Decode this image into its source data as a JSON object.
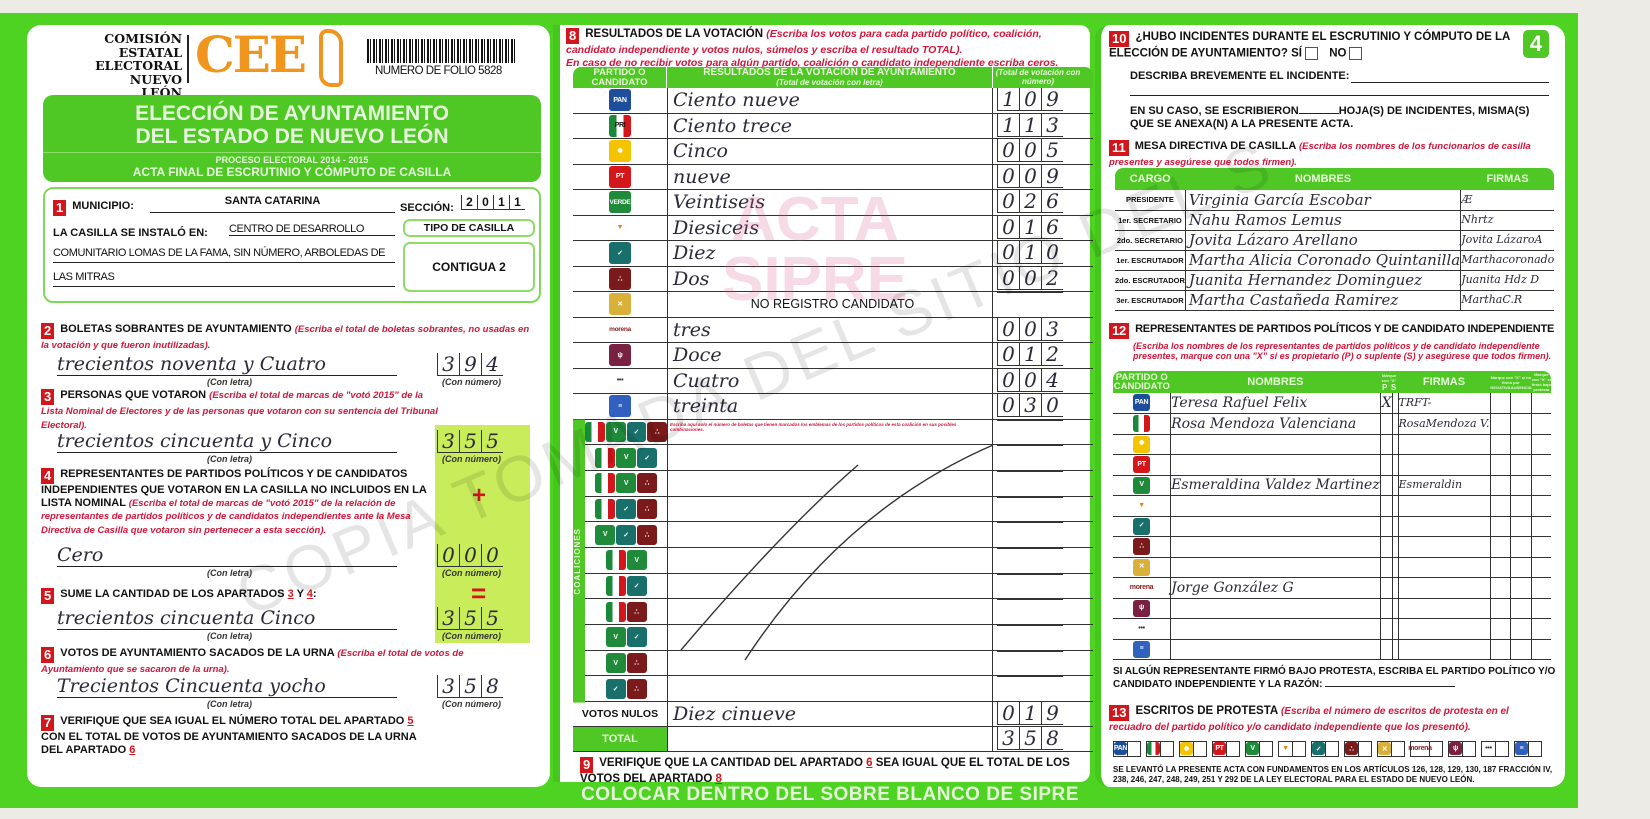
{
  "header": {
    "commission_lines": [
      "COMISIÓN",
      "ESTATAL",
      "ELECTORAL",
      "NUEVO LEÓN"
    ],
    "logo": "CEE",
    "folio": "NUMERO DE FOLIO 5828",
    "title_lines": [
      "ELECCIÓN DE AYUNTAMIENTO",
      "DEL ESTADO DE NUEVO LEÓN"
    ],
    "process": "PROCESO ELECTORAL 2014 - 2015",
    "acta": "ACTA FINAL DE ESCRUTINIO Y CÓMPUTO DE CASILLA"
  },
  "s1": {
    "n": "1",
    "municipio_label": "MUNICIPIO:",
    "municipio": "SANTA CATARINA",
    "seccion_label": "SECCIÓN:",
    "seccion": [
      "2",
      "0",
      "1",
      "1"
    ],
    "casilla_label": "LA CASILLA SE INSTALÓ EN:",
    "casilla_lines": [
      "CENTRO DE DESARROLLO",
      "COMUNITARIO LOMAS DE LA FAMA, SIN NÚMERO, ARBOLEDAS DE",
      "LAS MITRAS"
    ],
    "tipo_label": "TIPO DE CASILLA",
    "tipo": "CONTIGUA 2"
  },
  "labels": {
    "con_letra": "(Con letra)",
    "con_numero": "(Con número)",
    "plus": "+",
    "equals": "="
  },
  "s2": {
    "n": "2",
    "title": "BOLETAS SOBRANTES DE AYUNTAMIENTO",
    "note": "(Escriba el total de boletas sobrantes, no usadas en la votación y que fueron inutilizadas).",
    "letra": "trecientos noventa y Cuatro",
    "digits": [
      "3",
      "9",
      "4"
    ]
  },
  "s3": {
    "n": "3",
    "title": "PERSONAS QUE VOTARON",
    "note": "(Escriba el total de marcas de \"votó 2015\" de la Lista Nominal de Electores y de las personas que votaron con su sentencia del Tribunal Electoral).",
    "letra": "trecientos cincuenta y Cinco",
    "digits": [
      "3",
      "5",
      "5"
    ]
  },
  "s4": {
    "n": "4",
    "title": "REPRESENTANTES DE PARTIDOS POLÍTICOS Y DE CANDIDATOS INDEPENDIENTES QUE VOTARON EN LA CASILLA NO INCLUIDOS EN LA LISTA NOMINAL",
    "note": "(Escriba el total de marcas de \"votó 2015\" de la relación de representantes de partidos políticos y de candidatos independientes ante la Mesa Directiva de Casilla que votaron sin pertenecer a esta sección).",
    "letra": "Cero",
    "digits": [
      "0",
      "0",
      "0"
    ]
  },
  "s5": {
    "n": "5",
    "title": "SUME LA CANTIDAD DE LOS APARTADOS",
    "a": "3",
    "y": "Y",
    "b": "4",
    "colon": ":",
    "letra": "trecientos cincuenta Cinco",
    "digits": [
      "3",
      "5",
      "5"
    ]
  },
  "s6": {
    "n": "6",
    "title": "VOTOS DE AYUNTAMIENTO SACADOS DE LA URNA",
    "note": "(Escriba el total de votos de Ayuntamiento que se sacaron de la urna).",
    "letra": "Trecientos Cincuenta yocho",
    "digits": [
      "3",
      "5",
      "8"
    ]
  },
  "s7": {
    "n": "7",
    "t1": "VERIFIQUE QUE SEA IGUAL EL NÚMERO TOTAL DEL APARTADO",
    "a": "5",
    "t2": "CON EL TOTAL DE VOTOS DE AYUNTAMIENTO SACADOS DE LA URNA DEL APARTADO",
    "b": "6"
  },
  "s8": {
    "n": "8",
    "title": "RESULTADOS DE LA VOTACIÓN",
    "note": "(Escriba los votos para cada partido político, coalición, candidato independiente y votos nulos, súmelos y escriba el resultado TOTAL).",
    "note2": "En caso de no recibir votos para algún partido, coalición o candidato independiente escriba ceros.",
    "col1": "PARTIDO O CANDIDATO",
    "col2": "RESULTADOS DE LA VOTACIÓN DE AYUNTAMIENTO",
    "col2sub": "(Total de votación con letra)",
    "col3": "(Total de votación con número)",
    "rows": [
      {
        "icon": "pan",
        "label": "PAN",
        "letra": "Ciento nueve",
        "digits": [
          "1",
          "0",
          "9"
        ]
      },
      {
        "icon": "pri",
        "label": "PRI",
        "letra": "Ciento trece",
        "digits": [
          "1",
          "1",
          "3"
        ]
      },
      {
        "icon": "prd",
        "label": "",
        "letra": "Cinco",
        "digits": [
          "0",
          "0",
          "5"
        ]
      },
      {
        "icon": "pt",
        "label": "PT",
        "letra": "nueve",
        "digits": [
          "0",
          "0",
          "9"
        ]
      },
      {
        "icon": "verde",
        "label": "VERDE",
        "letra": "Veintiseis",
        "digits": [
          "0",
          "2",
          "6"
        ]
      },
      {
        "icon": "mc",
        "label": "",
        "letra": "Diesiceis",
        "digits": [
          "0",
          "1",
          "6"
        ]
      },
      {
        "icon": "na",
        "label": "",
        "letra": "Diez",
        "digits": [
          "0",
          "1",
          "0"
        ]
      },
      {
        "icon": "pd",
        "label": "",
        "letra": "Dos",
        "digits": [
          "0",
          "0",
          "2"
        ]
      },
      {
        "icon": "cc",
        "label": "",
        "letra": "NO REGISTRO CANDIDATO",
        "digits": [
          "",
          "",
          ""
        ],
        "printed": true
      },
      {
        "icon": "morena",
        "label": "morena",
        "letra": "tres",
        "digits": [
          "0",
          "0",
          "3"
        ]
      },
      {
        "icon": "ph",
        "label": "",
        "letra": "Doce",
        "digits": [
          "0",
          "1",
          "2"
        ]
      },
      {
        "icon": "es",
        "label": "",
        "letra": "Cuatro",
        "digits": [
          "0",
          "0",
          "4"
        ]
      },
      {
        "icon": "cci",
        "label": "",
        "letra": "treinta",
        "digits": [
          "0",
          "3",
          "0"
        ]
      }
    ],
    "coalition_label": "COALICIONES",
    "coalition_note": "Escriba aquí solo el número de boletas que tienen marcados los emblemas de los partidos políticos de esta coalición en sus posibles combinaciones.",
    "coalitions": [
      [
        "pri",
        "verde",
        "na",
        "pd"
      ],
      [
        "pri",
        "verde",
        "na"
      ],
      [
        "pri",
        "verde",
        "pd"
      ],
      [
        "pri",
        "na",
        "pd"
      ],
      [
        "verde",
        "na",
        "pd"
      ],
      [
        "pri",
        "verde"
      ],
      [
        "pri",
        "na"
      ],
      [
        "pri",
        "pd"
      ],
      [
        "verde",
        "na"
      ],
      [
        "verde",
        "pd"
      ],
      [
        "na",
        "pd"
      ]
    ],
    "nulos_label": "VOTOS NULOS",
    "nulos_letra": "Diez cinueve",
    "nulos_digits": [
      "0",
      "1",
      "9"
    ],
    "total_label": "TOTAL",
    "total_digits": [
      "3",
      "5",
      "8"
    ]
  },
  "s9": {
    "n": "9",
    "t1": "VERIFIQUE QUE LA CANTIDAD DEL APARTADO",
    "a": "6",
    "t2": "SEA IGUAL QUE EL TOTAL DE LOS VOTOS DEL APARTADO",
    "b": "8"
  },
  "footer": "COLOCAR DENTRO DEL SOBRE BLANCO DE SIPRE",
  "s10": {
    "n": "10",
    "q": "¿HUBO INCIDENTES DURANTE EL ESCRUTINIO Y CÓMPUTO DE LA ELECCIÓN DE AYUNTAMIENTO?",
    "si": "SÍ",
    "no": "NO",
    "describe": "DESCRIBA BREVEMENTE EL INCIDENTE:",
    "hojas1": "EN SU CASO, SE ESCRIBIERON",
    "hojas2": "HOJA(S) DE INCIDENTES, MISMA(S) QUE SE ANEXA(N) A LA PRESENTE ACTA.",
    "page": "4"
  },
  "s11": {
    "n": "11",
    "title": "MESA DIRECTIVA DE CASILLA",
    "note": "(Escriba los nombres de los funcionarios de casilla presentes y asegúrese que todos firmen).",
    "cols": [
      "CARGO",
      "NOMBRES",
      "FIRMAS"
    ],
    "rows": [
      {
        "cargo": "PRESIDENTE",
        "nombre": "Virginia García Escobar",
        "firma": "Æ"
      },
      {
        "cargo": "1er. SECRETARIO",
        "nombre": "Nahu Ramos Lemus",
        "firma": "Nhrtz"
      },
      {
        "cargo": "2do. SECRETARIO",
        "nombre": "Jovita Lázaro Arellano",
        "firma": "Jovita LázaroA"
      },
      {
        "cargo": "1er. ESCRUTADOR",
        "nombre": "Martha Alicia Coronado Quintanilla",
        "firma": "Marthacoronado"
      },
      {
        "cargo": "2do. ESCRUTADOR",
        "nombre": "Juanita Hernandez Dominguez",
        "firma": "Juanita Hdz D"
      },
      {
        "cargo": "3er. ESCRUTADOR",
        "nombre": "Martha Castañeda Ramirez",
        "firma": "MarthaC.R"
      }
    ]
  },
  "s12": {
    "n": "12",
    "title": "REPRESENTANTES DE PARTIDOS POLÍTICOS Y DE CANDIDATO INDEPENDIENTE",
    "note": "(Escriba los nombres de los representantes de partidos políticos y de candidato independiente presentes, marque con una \"X\" si es propietario (P) o suplente (S) y asegúrese que todos firmen).",
    "cols": {
      "partido": "PARTIDO O CANDIDATO",
      "nombres": "NOMBRES",
      "marque": "Marque con \"X\"",
      "p": "P",
      "s": "S",
      "firmas": "FIRMAS",
      "no_firmo": "Marque con \"X\" si no firmó por",
      "negativa": "NEGATIVA",
      "ausencia": "AUSENCIA",
      "protesta": "Marque con \"X\" si firmó bajo protesta"
    },
    "rows": [
      {
        "icon": "pan",
        "nombre": "Teresa Rafuel Felix",
        "p": "X",
        "s": "",
        "firma": "TRFT-"
      },
      {
        "icon": "pri",
        "nombre": "Rosa Mendoza Valenciana",
        "p": "",
        "s": "",
        "firma": "RosaMendoza V."
      },
      {
        "icon": "prd",
        "nombre": "",
        "p": "",
        "s": "",
        "firma": ""
      },
      {
        "icon": "pt",
        "nombre": "",
        "p": "",
        "s": "",
        "firma": ""
      },
      {
        "icon": "verde",
        "nombre": "Esmeraldina Valdez Martinez",
        "p": "",
        "s": "",
        "firma": "Esmeraldin"
      },
      {
        "icon": "mc",
        "nombre": "",
        "p": "",
        "s": "",
        "firma": ""
      },
      {
        "icon": "na",
        "nombre": "",
        "p": "",
        "s": "",
        "firma": ""
      },
      {
        "icon": "pd",
        "nombre": "",
        "p": "",
        "s": "",
        "firma": ""
      },
      {
        "icon": "cc",
        "nombre": "",
        "p": "",
        "s": "",
        "firma": ""
      },
      {
        "icon": "morena",
        "nombre": "Jorge González G",
        "p": "",
        "s": "",
        "firma": ""
      },
      {
        "icon": "ph",
        "nombre": "",
        "p": "",
        "s": "",
        "firma": ""
      },
      {
        "icon": "es",
        "nombre": "",
        "p": "",
        "s": "",
        "firma": ""
      },
      {
        "icon": "cci",
        "nombre": "",
        "p": "",
        "s": "",
        "firma": ""
      }
    ],
    "protesta_text": "SI ALGÚN REPRESENTANTE FIRMÓ BAJO PROTESTA, ESCRIBA EL PARTIDO POLÍTICO Y/O CANDIDATO INDEPENDIENTE Y LA RAZÓN:"
  },
  "s13": {
    "n": "13",
    "title": "ESCRITOS DE PROTESTA",
    "note": "(Escriba el número de escritos de protesta en el recuadro del partido político y/o candidato independiente que los presentó).",
    "boxes": [
      "pan",
      "pri",
      "prd",
      "pt",
      "verde",
      "mc",
      "na",
      "pd",
      "cc",
      "morena",
      "ph",
      "es",
      "cci"
    ],
    "legal": "SE LEVANTÓ LA PRESENTE ACTA CON FUNDAMENTOS EN LOS ARTÍCULOS 126, 128, 129, 130, 187 FRACCIÓN IV, 238, 246, 247, 248, 249, 251 Y 292 DE LA LEY ELECTORAL PARA EL ESTADO DE NUEVO LEÓN."
  },
  "watermarks": {
    "copia": "COPIA TOMADA DEL SITIO DEL S",
    "acta": "ACTA",
    "sipre": "SIPRE"
  },
  "colors": {
    "green": "#4fd322",
    "red": "#d3161b",
    "logo_orange": "#f0961e",
    "lime": "#c8ec5a"
  }
}
